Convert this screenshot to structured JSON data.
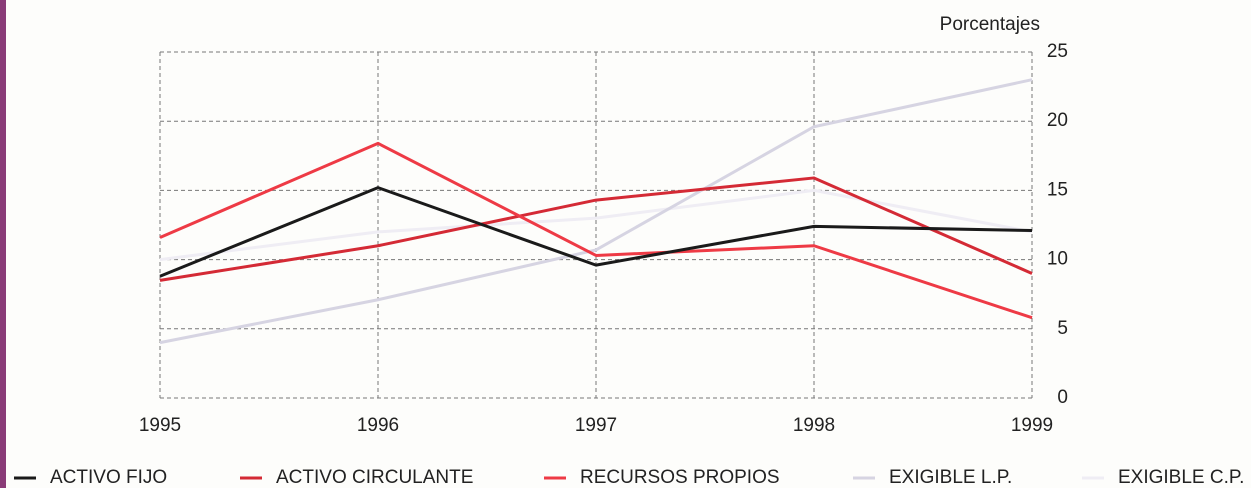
{
  "chart_data": {
    "type": "line",
    "y_axis_label": "Porcentajes",
    "x": [
      1995,
      1996,
      1997,
      1998,
      1999
    ],
    "xlim": [
      1995,
      1999
    ],
    "xticks": [
      1995,
      1996,
      1997,
      1998,
      1999
    ],
    "ylim": [
      0,
      25
    ],
    "yticks": [
      0,
      5,
      10,
      15,
      20,
      25
    ],
    "grid": true,
    "legend": "bottom",
    "series": [
      {
        "name": "ACTIVO FIJO",
        "color": "#1a1a1a",
        "values": [
          8.8,
          15.2,
          9.6,
          12.4,
          12.1
        ]
      },
      {
        "name": "ACTIVO CIRCULANTE",
        "color": "#d42a35",
        "values": [
          8.5,
          11.0,
          14.3,
          15.9,
          9.0
        ]
      },
      {
        "name": "RECURSOS PROPIOS",
        "color": "#ee3a45",
        "values": [
          11.6,
          18.4,
          10.3,
          11.0,
          5.8
        ]
      },
      {
        "name": "EXIGIBLE L.P.",
        "color": "#d6d4e2",
        "values": [
          4.0,
          7.1,
          10.7,
          19.6,
          23.0
        ]
      },
      {
        "name": "EXIGIBLE C.P.",
        "color": "#efedf4",
        "values": [
          10.0,
          12.0,
          13.0,
          15.0,
          12.0
        ]
      }
    ]
  }
}
